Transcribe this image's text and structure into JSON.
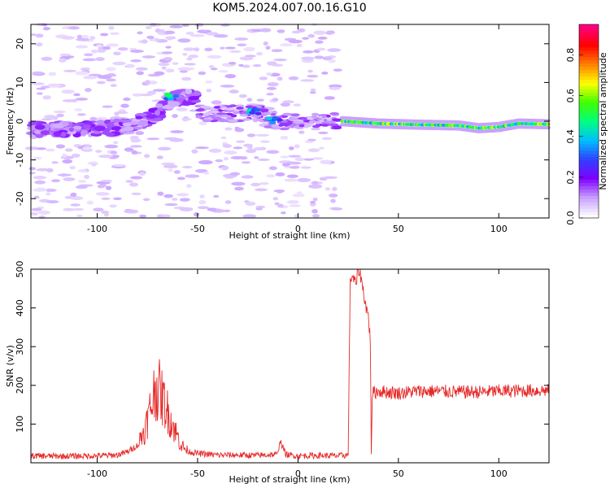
{
  "chart_data": [
    {
      "type": "heatmap",
      "title": "KOM5.2024.007.00.16.G10",
      "xlabel": "Height of straight line (km)",
      "ylabel": "Frequency (Hz)",
      "xlim": [
        -133,
        125
      ],
      "ylim": [
        -25,
        25
      ],
      "xticks": [
        -100,
        -50,
        0,
        50,
        100
      ],
      "yticks": [
        -20,
        -10,
        0,
        10,
        20
      ],
      "colorbar": {
        "label": "Normalized spectral amplitude",
        "range": [
          0,
          0.95
        ],
        "ticks": [
          "0.0",
          "0.2",
          "0.4",
          "0.6",
          "0.8"
        ],
        "colormap": [
          "#ffffff",
          "#c8a0ff",
          "#7f00ff",
          "#3040ff",
          "#00c0ff",
          "#00ff80",
          "#40ff00",
          "#ffff00",
          "#ff8000",
          "#ff0000",
          "#ff0080"
        ]
      },
      "features": {
        "weak_region_x": [
          -133,
          20
        ],
        "strong_ridge_x": [
          22,
          125
        ],
        "strong_ridge_freq_hz": [
          [
            22,
            0.0
          ],
          [
            40,
            -0.6
          ],
          [
            60,
            -0.9
          ],
          [
            80,
            -1.1
          ],
          [
            90,
            -1.8
          ],
          [
            100,
            -1.5
          ],
          [
            110,
            -0.6
          ],
          [
            125,
            -0.8
          ]
        ],
        "diagonal_ridge": [
          [
            -133,
            -2.2
          ],
          [
            -110,
            -2.0
          ],
          [
            -95,
            -1.8
          ],
          [
            -85,
            -1.2
          ],
          [
            -75,
            0.5
          ],
          [
            -70,
            2.0
          ],
          [
            -65,
            4.5
          ],
          [
            -60,
            6.0
          ],
          [
            -50,
            6.5
          ]
        ],
        "hot_spots": [
          {
            "x": -63,
            "y": 6.3,
            "level": 0.55
          },
          {
            "x": -22,
            "y": 2.4,
            "level": 0.5
          },
          {
            "x": -12,
            "y": 0.4,
            "level": 0.45
          }
        ]
      }
    },
    {
      "type": "line",
      "xlabel": "Height of straight line (km)",
      "ylabel": "SNR (v/v)",
      "xlim": [
        -133,
        125
      ],
      "ylim": [
        0,
        500
      ],
      "xticks": [
        -100,
        -50,
        0,
        50,
        100
      ],
      "yticks": [
        100,
        200,
        300,
        400,
        500
      ],
      "color": "#e62a2a",
      "series": [
        {
          "x": [
            -133,
            -120,
            -100,
            -90,
            -85,
            -80,
            -76,
            -73,
            -71,
            -69,
            -67,
            -64,
            -61,
            -58,
            -55,
            -50,
            -40,
            -30,
            -20,
            -10,
            -9,
            -8,
            -6,
            -5,
            0,
            10,
            20,
            25,
            26,
            27,
            28,
            29,
            30,
            31,
            32,
            33,
            34,
            35,
            36,
            36.5,
            37,
            40,
            50,
            60,
            70,
            80,
            90,
            100,
            110,
            125
          ],
          "y": [
            18,
            17,
            18,
            20,
            28,
            45,
            90,
            150,
            195,
            185,
            160,
            120,
            80,
            45,
            30,
            24,
            20,
            20,
            19,
            22,
            60,
            45,
            22,
            20,
            18,
            19,
            18,
            20,
            470,
            485,
            470,
            460,
            500,
            490,
            460,
            430,
            400,
            380,
            320,
            25,
            180,
            185,
            180,
            185,
            185,
            183,
            183,
            185,
            186,
            187
          ]
        }
      ]
    }
  ]
}
